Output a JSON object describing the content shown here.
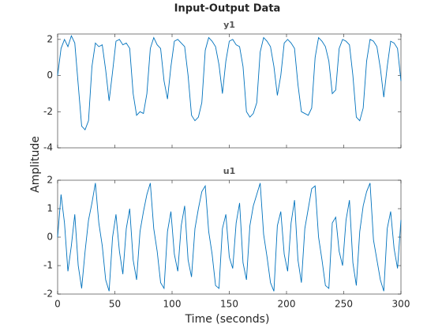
{
  "figure": {
    "title": "Input-Output Data",
    "xlabel": "Time (seconds)",
    "ylabel": "Amplitude"
  },
  "chart_data": [
    {
      "type": "line",
      "title": "y1",
      "xlim": [
        0,
        300
      ],
      "xticks": [
        0,
        50,
        100,
        150,
        200,
        250,
        300
      ],
      "ylim": [
        -4,
        2.3
      ],
      "yticks": [
        -4,
        -2,
        0,
        2
      ],
      "x": [
        0,
        3,
        6,
        9,
        12,
        15,
        18,
        21,
        24,
        27,
        30,
        33,
        36,
        39,
        42,
        45,
        48,
        51,
        54,
        57,
        60,
        63,
        66,
        69,
        72,
        75,
        78,
        81,
        84,
        87,
        90,
        93,
        96,
        99,
        102,
        105,
        108,
        111,
        114,
        117,
        120,
        123,
        126,
        129,
        132,
        135,
        138,
        141,
        144,
        147,
        150,
        153,
        156,
        159,
        162,
        165,
        168,
        171,
        174,
        177,
        180,
        183,
        186,
        189,
        192,
        195,
        198,
        201,
        204,
        207,
        210,
        213,
        216,
        219,
        222,
        225,
        228,
        231,
        234,
        237,
        240,
        243,
        246,
        249,
        252,
        255,
        258,
        261,
        264,
        267,
        270,
        273,
        276,
        279,
        282,
        285,
        288,
        291,
        294,
        297,
        300
      ],
      "series": [
        {
          "name": "y1",
          "color": "#0072bd",
          "values": [
            0.0,
            1.5,
            2.0,
            1.6,
            2.2,
            1.8,
            -0.5,
            -2.8,
            -3.0,
            -2.5,
            0.5,
            1.8,
            1.6,
            1.7,
            0.3,
            -1.4,
            0.2,
            1.9,
            2.0,
            1.7,
            1.8,
            1.5,
            -1.0,
            -2.2,
            -2.0,
            -2.1,
            -1.0,
            1.5,
            2.1,
            1.7,
            1.5,
            -0.3,
            -1.3,
            0.5,
            1.9,
            2.0,
            1.8,
            1.6,
            0.0,
            -2.2,
            -2.5,
            -2.3,
            -1.5,
            1.4,
            2.1,
            1.9,
            1.6,
            0.6,
            -1.0,
            0.8,
            1.9,
            2.0,
            1.7,
            1.6,
            0.5,
            -2.0,
            -2.3,
            -2.1,
            -1.5,
            1.3,
            2.1,
            1.9,
            1.6,
            0.5,
            -1.1,
            0.0,
            1.8,
            2.0,
            1.8,
            1.5,
            -0.5,
            -2.0,
            -2.1,
            -2.2,
            -1.8,
            1.0,
            2.1,
            1.9,
            1.6,
            0.8,
            -1.0,
            -0.8,
            1.5,
            2.0,
            1.9,
            1.7,
            0.0,
            -2.3,
            -2.5,
            -1.8,
            0.8,
            2.0,
            1.9,
            1.6,
            0.4,
            -1.2,
            0.5,
            1.9,
            1.8,
            1.5,
            -0.3
          ]
        }
      ]
    },
    {
      "type": "line",
      "title": "u1",
      "xlim": [
        0,
        300
      ],
      "xticks": [
        0,
        50,
        100,
        150,
        200,
        250,
        300
      ],
      "ylim": [
        -2,
        2
      ],
      "yticks": [
        -2,
        -1,
        0,
        1,
        2
      ],
      "x": [
        0,
        3,
        6,
        9,
        12,
        15,
        18,
        21,
        24,
        27,
        30,
        33,
        36,
        39,
        42,
        45,
        48,
        51,
        54,
        57,
        60,
        63,
        66,
        69,
        72,
        75,
        78,
        81,
        84,
        87,
        90,
        93,
        96,
        99,
        102,
        105,
        108,
        111,
        114,
        117,
        120,
        123,
        126,
        129,
        132,
        135,
        138,
        141,
        144,
        147,
        150,
        153,
        156,
        159,
        162,
        165,
        168,
        171,
        174,
        177,
        180,
        183,
        186,
        189,
        192,
        195,
        198,
        201,
        204,
        207,
        210,
        213,
        216,
        219,
        222,
        225,
        228,
        231,
        234,
        237,
        240,
        243,
        246,
        249,
        252,
        255,
        258,
        261,
        264,
        267,
        270,
        273,
        276,
        279,
        282,
        285,
        288,
        291,
        294,
        297,
        300
      ],
      "series": [
        {
          "name": "u1",
          "color": "#0072bd",
          "values": [
            0.0,
            1.5,
            0.5,
            -1.2,
            -0.3,
            0.8,
            -1.0,
            -1.8,
            -0.5,
            0.6,
            1.2,
            1.9,
            0.5,
            -0.3,
            -1.5,
            -1.9,
            0.0,
            0.8,
            -0.5,
            -1.3,
            0.3,
            1.0,
            -0.8,
            -1.5,
            0.2,
            0.9,
            1.5,
            1.9,
            0.3,
            -0.5,
            -1.6,
            -1.8,
            0.2,
            0.9,
            -0.6,
            -1.2,
            0.4,
            1.1,
            -0.8,
            -1.4,
            0.3,
            1.0,
            1.6,
            1.8,
            0.2,
            -0.6,
            -1.7,
            -1.8,
            0.3,
            0.8,
            -0.7,
            -1.1,
            0.5,
            1.2,
            -0.9,
            -1.5,
            0.4,
            1.1,
            1.5,
            1.9,
            0.1,
            -0.7,
            -1.6,
            -1.9,
            0.4,
            0.9,
            -0.6,
            -1.2,
            0.5,
            1.3,
            -0.8,
            -1.6,
            0.3,
            1.0,
            1.7,
            1.8,
            0.0,
            -0.8,
            -1.7,
            -1.8,
            0.5,
            0.7,
            -0.5,
            -1.0,
            0.6,
            1.3,
            -0.9,
            -1.7,
            0.2,
            1.1,
            1.6,
            1.9,
            -0.1,
            -0.8,
            -1.5,
            -1.9,
            0.3,
            0.9,
            -0.4,
            -1.1,
            0.6
          ]
        }
      ]
    }
  ]
}
